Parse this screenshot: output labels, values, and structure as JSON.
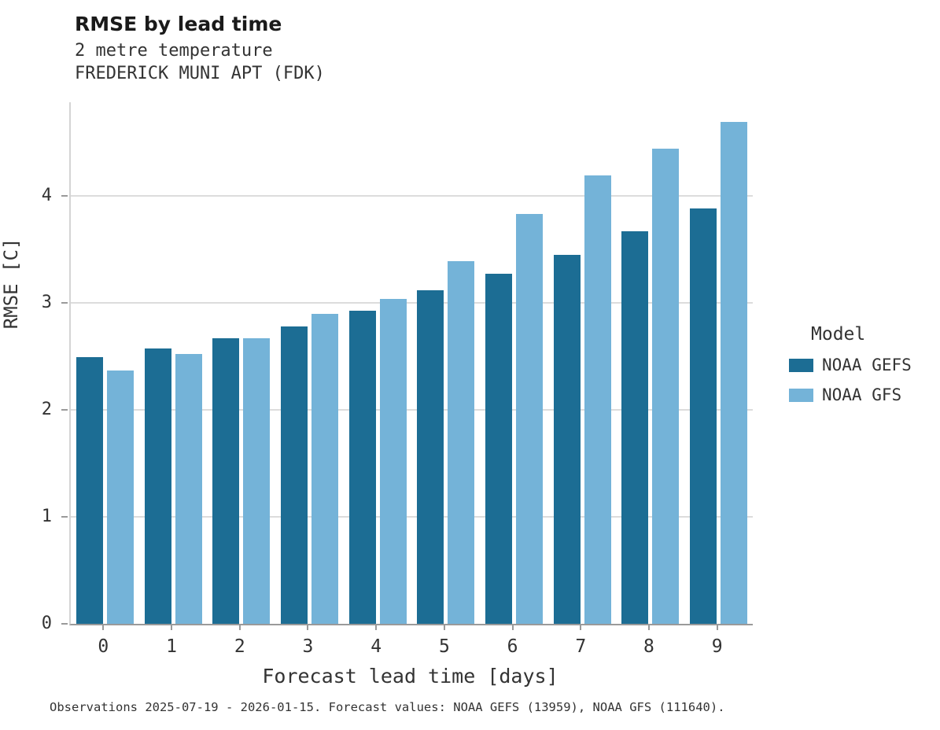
{
  "chart_data": {
    "type": "bar",
    "title": "RMSE by lead time",
    "subtitle": "2 metre temperature",
    "subtitle2": "FREDERICK MUNI APT (FDK)",
    "xlabel": "Forecast lead time [days]",
    "ylabel": "RMSE [C]",
    "categories": [
      "0",
      "1",
      "2",
      "3",
      "4",
      "5",
      "6",
      "7",
      "8",
      "9"
    ],
    "series": [
      {
        "name": "NOAA GEFS",
        "color": "#1c6d94",
        "values": [
          2.49,
          2.57,
          2.67,
          2.78,
          2.93,
          3.12,
          3.27,
          3.45,
          3.67,
          3.88
        ]
      },
      {
        "name": "NOAA GFS",
        "color": "#74b3d8",
        "values": [
          2.37,
          2.52,
          2.67,
          2.9,
          3.04,
          3.39,
          3.83,
          4.19,
          4.44,
          4.69
        ]
      }
    ],
    "yticks": [
      0,
      1,
      2,
      3,
      4
    ],
    "ylim": [
      0,
      4.875
    ],
    "grid": "horizontal",
    "legend": {
      "title": "Model",
      "position": "right"
    }
  },
  "caption": "Observations 2025-07-19 - 2026-01-15. Forecast values: NOAA GEFS (13959), NOAA GFS (111640)."
}
